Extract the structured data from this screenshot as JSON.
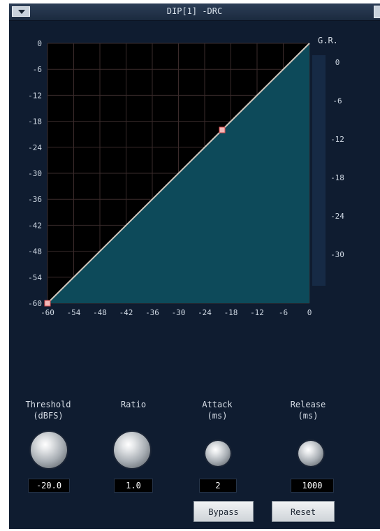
{
  "window": {
    "title": "DIP[1] -DRC",
    "menu_icon": "chevron-down-icon",
    "close_icon": "close-icon"
  },
  "graph": {
    "gr_label": "G.R.",
    "axis_color": "#cfd8e3",
    "fill_color": "#0d4a5a",
    "line_color": "#d0c7bd",
    "y_ticks": [
      "0",
      "-6",
      "-12",
      "-18",
      "-24",
      "-30",
      "-36",
      "-42",
      "-48",
      "-54",
      "-60"
    ],
    "x_ticks": [
      "-60",
      "-54",
      "-48",
      "-42",
      "-36",
      "-30",
      "-24",
      "-18",
      "-12",
      "-6",
      "0"
    ],
    "gr_ticks": [
      "0",
      "-6",
      "-12",
      "-18",
      "-24",
      "-30"
    ],
    "threshold_point_db": -20,
    "curve_points": [
      [
        -60,
        -60
      ],
      [
        -20,
        -20
      ],
      [
        0,
        0
      ]
    ]
  },
  "controls": [
    {
      "id": "threshold",
      "label": "Threshold",
      "unit": "(dBFS)",
      "value": "-20.0"
    },
    {
      "id": "ratio",
      "label": "Ratio",
      "unit": "",
      "value": "1.0"
    },
    {
      "id": "attack",
      "label": "Attack",
      "unit": "(ms)",
      "value": "2"
    },
    {
      "id": "release",
      "label": "Release",
      "unit": "(ms)",
      "value": "1000"
    }
  ],
  "buttons": {
    "bypass": "Bypass",
    "reset": "Reset"
  }
}
